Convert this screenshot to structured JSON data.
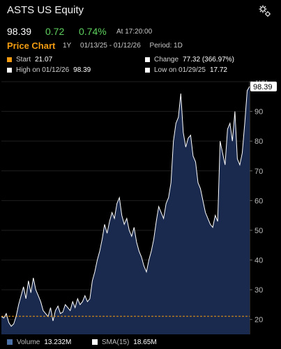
{
  "header": {
    "title": "ASTS US Equity",
    "price": "98.39",
    "change": "0.72",
    "change_pct": "0.74%",
    "time": "At 17:20:00"
  },
  "chart_header": {
    "label": "Price Chart",
    "range": "1Y",
    "dates": "01/13/25 - 01/12/26",
    "period": "Period: 1D"
  },
  "stats": {
    "start_label": "Start",
    "start_value": "21.07",
    "change_label": "Change",
    "change_value": "77.32 (366.97%)",
    "high_label": "High on 01/12/26",
    "high_value": "98.39",
    "low_label": "Low on 01/29/25",
    "low_value": "17.72"
  },
  "footer": {
    "volume_label": "Volume",
    "volume_value": "13.232M",
    "sma_label": "SMA(15)",
    "sma_value": "18.65M"
  },
  "colors": {
    "up": "#5ed15e",
    "accent": "#f39c12",
    "area_fill": "#1a2a4f",
    "line": "#ffffff"
  },
  "chart_data": {
    "type": "area",
    "x_range": [
      "01/13/25",
      "01/12/26"
    ],
    "ylim": [
      15,
      100
    ],
    "y_ticks": [
      20,
      30,
      40,
      50,
      60,
      70,
      80,
      90,
      100
    ],
    "start_reference": 21.07,
    "last_value_label": "98.39",
    "values": [
      21,
      20.5,
      22,
      19,
      17.7,
      18.5,
      21,
      25,
      28,
      31,
      27,
      33,
      29,
      34,
      30,
      28,
      26,
      23,
      22,
      21,
      24,
      19.5,
      23,
      24.5,
      22,
      22.5,
      25,
      24,
      23,
      26,
      24,
      27,
      25,
      26,
      28,
      26,
      27,
      33,
      36,
      40,
      43,
      47,
      52,
      49,
      53,
      56,
      54,
      59,
      61,
      55,
      52,
      54,
      50,
      48,
      51,
      46,
      43,
      41,
      38,
      36,
      40,
      43,
      47,
      53,
      58,
      56,
      54,
      59,
      61,
      66,
      80,
      86,
      88,
      96,
      83,
      78,
      81,
      82,
      75,
      73,
      66,
      64,
      60,
      56,
      54,
      52,
      51,
      55,
      53,
      80,
      76,
      72,
      84,
      86,
      80,
      90,
      74,
      72,
      76,
      86,
      97,
      98.39
    ]
  }
}
